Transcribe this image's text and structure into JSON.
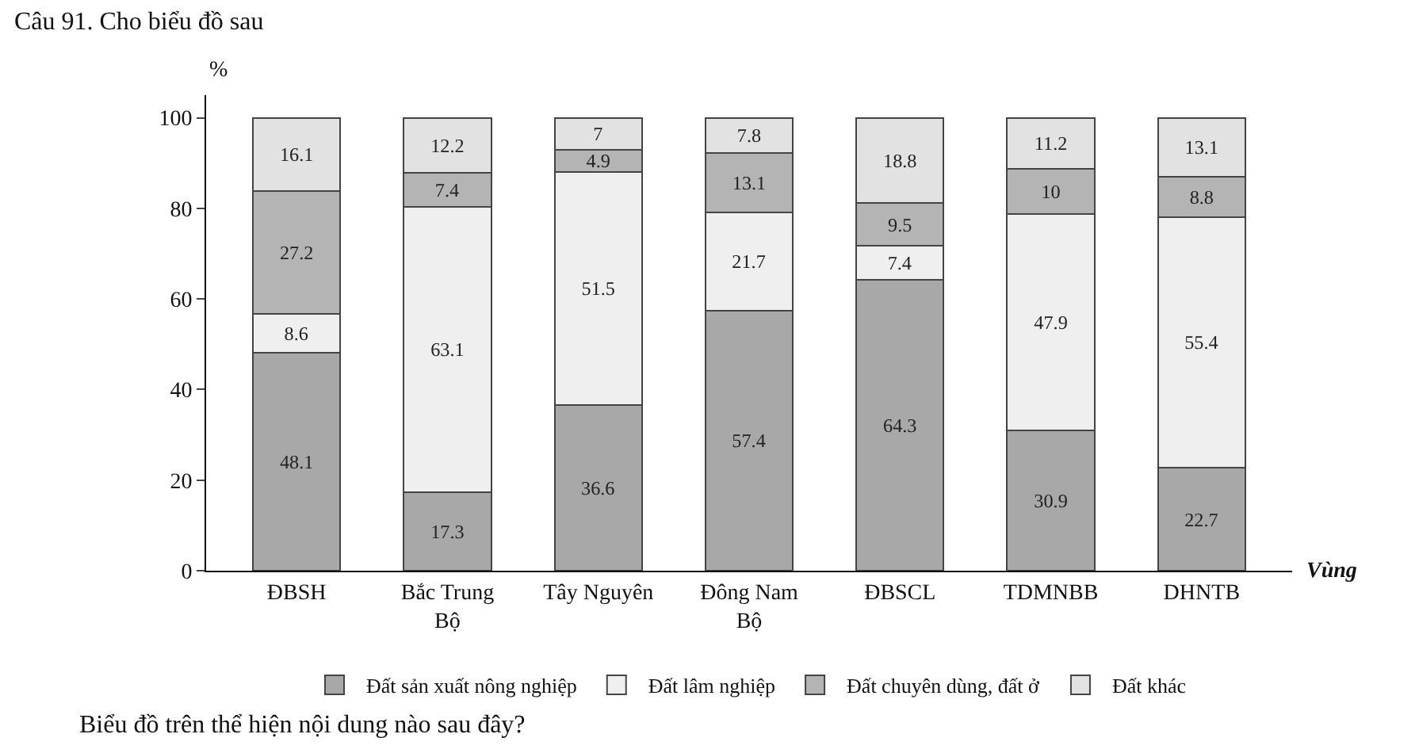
{
  "chart_data": {
    "type": "bar",
    "stacked": true,
    "title": "Câu 91. Cho biểu đồ sau",
    "ylabel": "%",
    "xlabel": "Vùng",
    "categories": [
      "ĐBSH",
      "Bắc Trung Bộ",
      "Tây Nguyên",
      "Đông Nam Bộ",
      "ĐBSCL",
      "TDMNBB",
      "DHNTB"
    ],
    "series": [
      {
        "name": "Đất sản xuất nông nghiệp",
        "color": "#a8a8a8",
        "values": [
          48.1,
          17.3,
          36.6,
          57.4,
          64.3,
          30.9,
          22.7
        ]
      },
      {
        "name": "Đất lâm nghiệp",
        "color": "#efefef",
        "values": [
          8.6,
          63.1,
          51.5,
          21.7,
          7.4,
          47.9,
          55.4
        ]
      },
      {
        "name": "Đất chuyên dùng, đất ở",
        "color": "#b4b4b4",
        "values": [
          27.2,
          7.4,
          4.9,
          13.1,
          9.5,
          10,
          8.8
        ]
      },
      {
        "name": "Đất khác",
        "color": "#e2e2e2",
        "values": [
          16.1,
          12.2,
          7,
          7.8,
          18.8,
          11.2,
          13.1
        ]
      }
    ],
    "ylim": [
      0,
      105
    ],
    "yticks": [
      0,
      20,
      40,
      60,
      80,
      100
    ],
    "data_labels": true,
    "legend": "bottom",
    "annotations": [
      "Biểu đồ trên thể hiện nội dung nào sau đây?"
    ]
  }
}
